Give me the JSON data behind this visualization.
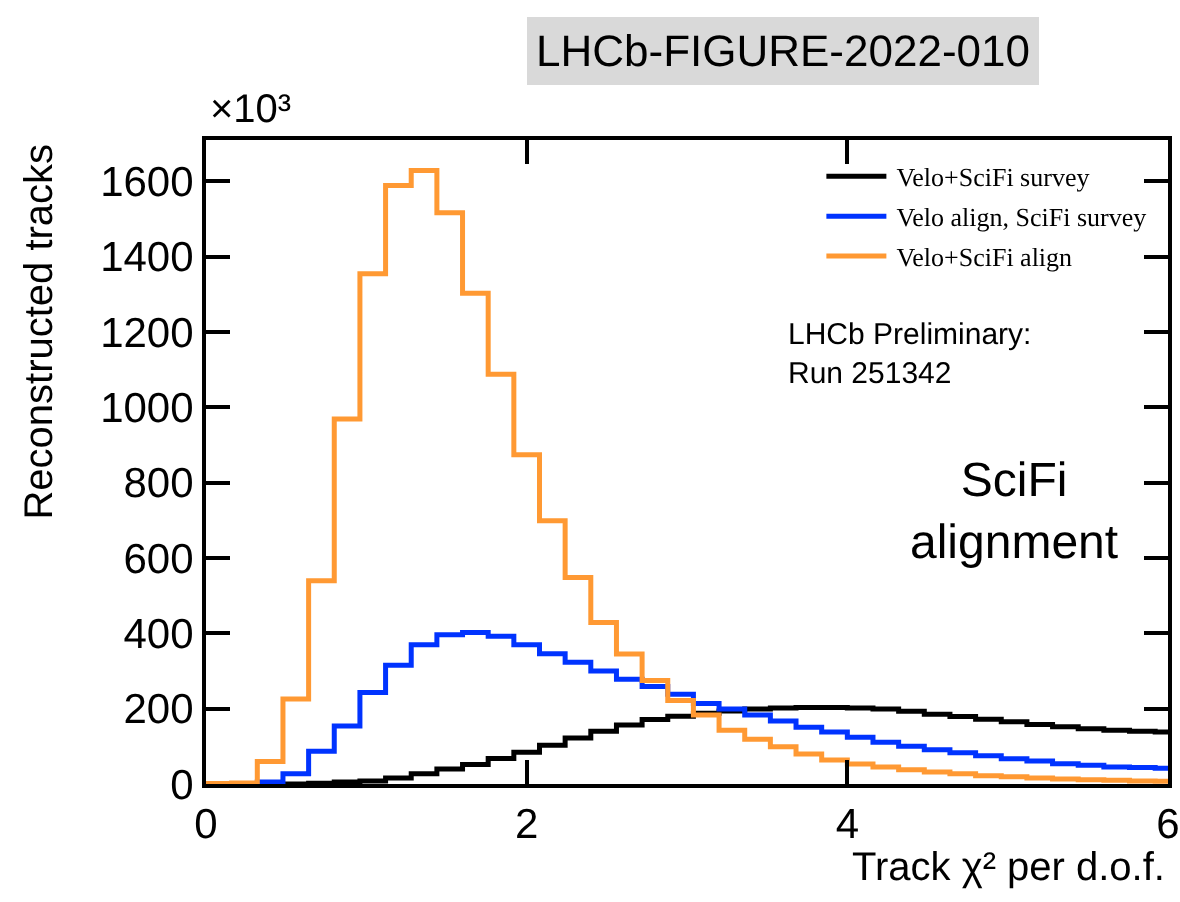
{
  "chart_data": {
    "type": "histogram",
    "title": "LHCb-FIGURE-2022-010",
    "xlabel": "Track χ² per d.o.f.",
    "ylabel": "Reconstructed tracks",
    "annotations": [
      "×10³",
      "LHCb Preliminary:\nRun 251342",
      "SciFi\nalignment"
    ],
    "bins": [
      0,
      0.16,
      0.32,
      0.48,
      0.64,
      0.8,
      0.96,
      1.12,
      1.28,
      1.44,
      1.6,
      1.76,
      1.92,
      2.08,
      2.24,
      2.4,
      2.56,
      2.72,
      2.88,
      3.04,
      3.2,
      3.36,
      3.52,
      3.68,
      3.84,
      4.0,
      4.16,
      4.32,
      4.48,
      4.64,
      4.8,
      4.96,
      5.12,
      5.28,
      5.44,
      5.6,
      5.76,
      5.92,
      6.0
    ],
    "series": [
      {
        "name": "Velo+SciFi survey",
        "color": "#000000",
        "values": [
          0,
          0,
          0,
          0,
          2,
          5,
          8,
          16,
          27,
          40,
          52,
          68,
          84,
          103,
          122,
          140,
          157,
          171,
          180,
          188,
          194,
          199,
          202,
          203,
          203,
          202,
          199,
          193,
          185,
          179,
          172,
          165,
          158,
          152,
          147,
          143,
          140,
          138
        ]
      },
      {
        "name": "Velo align, SciFi survey",
        "color": "#0033ff",
        "values": [
          0,
          0,
          5,
          27,
          87,
          154,
          243,
          315,
          370,
          396,
          402,
          392,
          370,
          346,
          323,
          300,
          278,
          259,
          238,
          214,
          199,
          183,
          167,
          151,
          138,
          124,
          111,
          100,
          91,
          83,
          75,
          67,
          61,
          54,
          50,
          45,
          44,
          42
        ]
      },
      {
        "name": "Velo+SciFi align",
        "color": "#ff9933",
        "values": [
          1,
          3,
          60,
          226,
          540,
          969,
          1355,
          1589,
          1629,
          1517,
          1303,
          1088,
          874,
          699,
          548,
          429,
          345,
          275,
          222,
          183,
          143,
          119,
          99,
          80,
          64,
          53,
          45,
          38,
          32,
          27,
          22,
          19,
          16,
          13,
          11,
          10,
          8,
          7
        ]
      }
    ],
    "xlim": [
      0,
      6
    ],
    "xticks": [
      0,
      2,
      4,
      6
    ],
    "ylim": [
      0,
      1710
    ],
    "yticks": [
      0,
      200,
      400,
      600,
      800,
      1000,
      1200,
      1400,
      1600
    ],
    "grid": false,
    "legend": "top right"
  }
}
